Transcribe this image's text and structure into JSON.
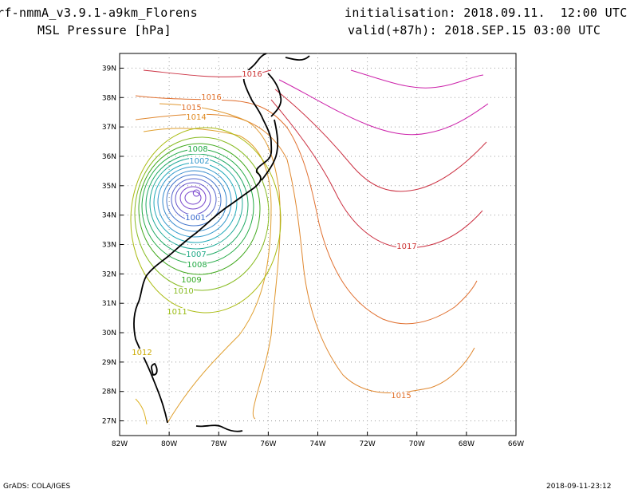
{
  "header": {
    "title_line1": "rf-nmmA_v3.9.1-a9km_Florens",
    "title_line2": "MSL Pressure [hPa]",
    "init_line": "initialisation: 2018.09.11.  12:00 UTC",
    "valid_line": "valid(+87h): 2018.SEP.15 03:00 UTC"
  },
  "footer": {
    "credit": "GrADS: COLA/IGES",
    "timestamp": "2018-09-11-23:12"
  },
  "map": {
    "variable": "MSL Pressure",
    "units": "hPa",
    "lon_range": [
      -82,
      -66
    ],
    "lat_range": [
      26.5,
      39.5
    ],
    "grid": true,
    "lat_labels": [
      "39N",
      "38N",
      "37N",
      "36N",
      "35N",
      "34N",
      "33N",
      "32N",
      "31N",
      "30N",
      "29N",
      "28N",
      "27N"
    ],
    "lon_labels": [
      "82W",
      "80W",
      "78W",
      "76W",
      "74W",
      "72W",
      "70W",
      "68W",
      "66W"
    ],
    "low_center": {
      "lon": -78.9,
      "lat": 34.75
    },
    "contour_labels": [
      {
        "text": "1016",
        "color": "#cc3333"
      },
      {
        "text": "1016",
        "color": "#e0702a"
      },
      {
        "text": "1015",
        "color": "#e0702a"
      },
      {
        "text": "1014",
        "color": "#e08a20"
      },
      {
        "text": "1008",
        "color": "#22aa44"
      },
      {
        "text": "1002",
        "color": "#3399cc"
      },
      {
        "text": "1001",
        "color": "#3366cc"
      },
      {
        "text": "1007",
        "color": "#22aa88"
      },
      {
        "text": "1008",
        "color": "#22aa44"
      },
      {
        "text": "1009",
        "color": "#33aa22"
      },
      {
        "text": "1010",
        "color": "#88bb22"
      },
      {
        "text": "1011",
        "color": "#99bb11"
      },
      {
        "text": "1012",
        "color": "#ccaa00"
      },
      {
        "text": "1017",
        "color": "#cc3333"
      },
      {
        "text": "1015",
        "color": "#e0702a"
      }
    ]
  }
}
